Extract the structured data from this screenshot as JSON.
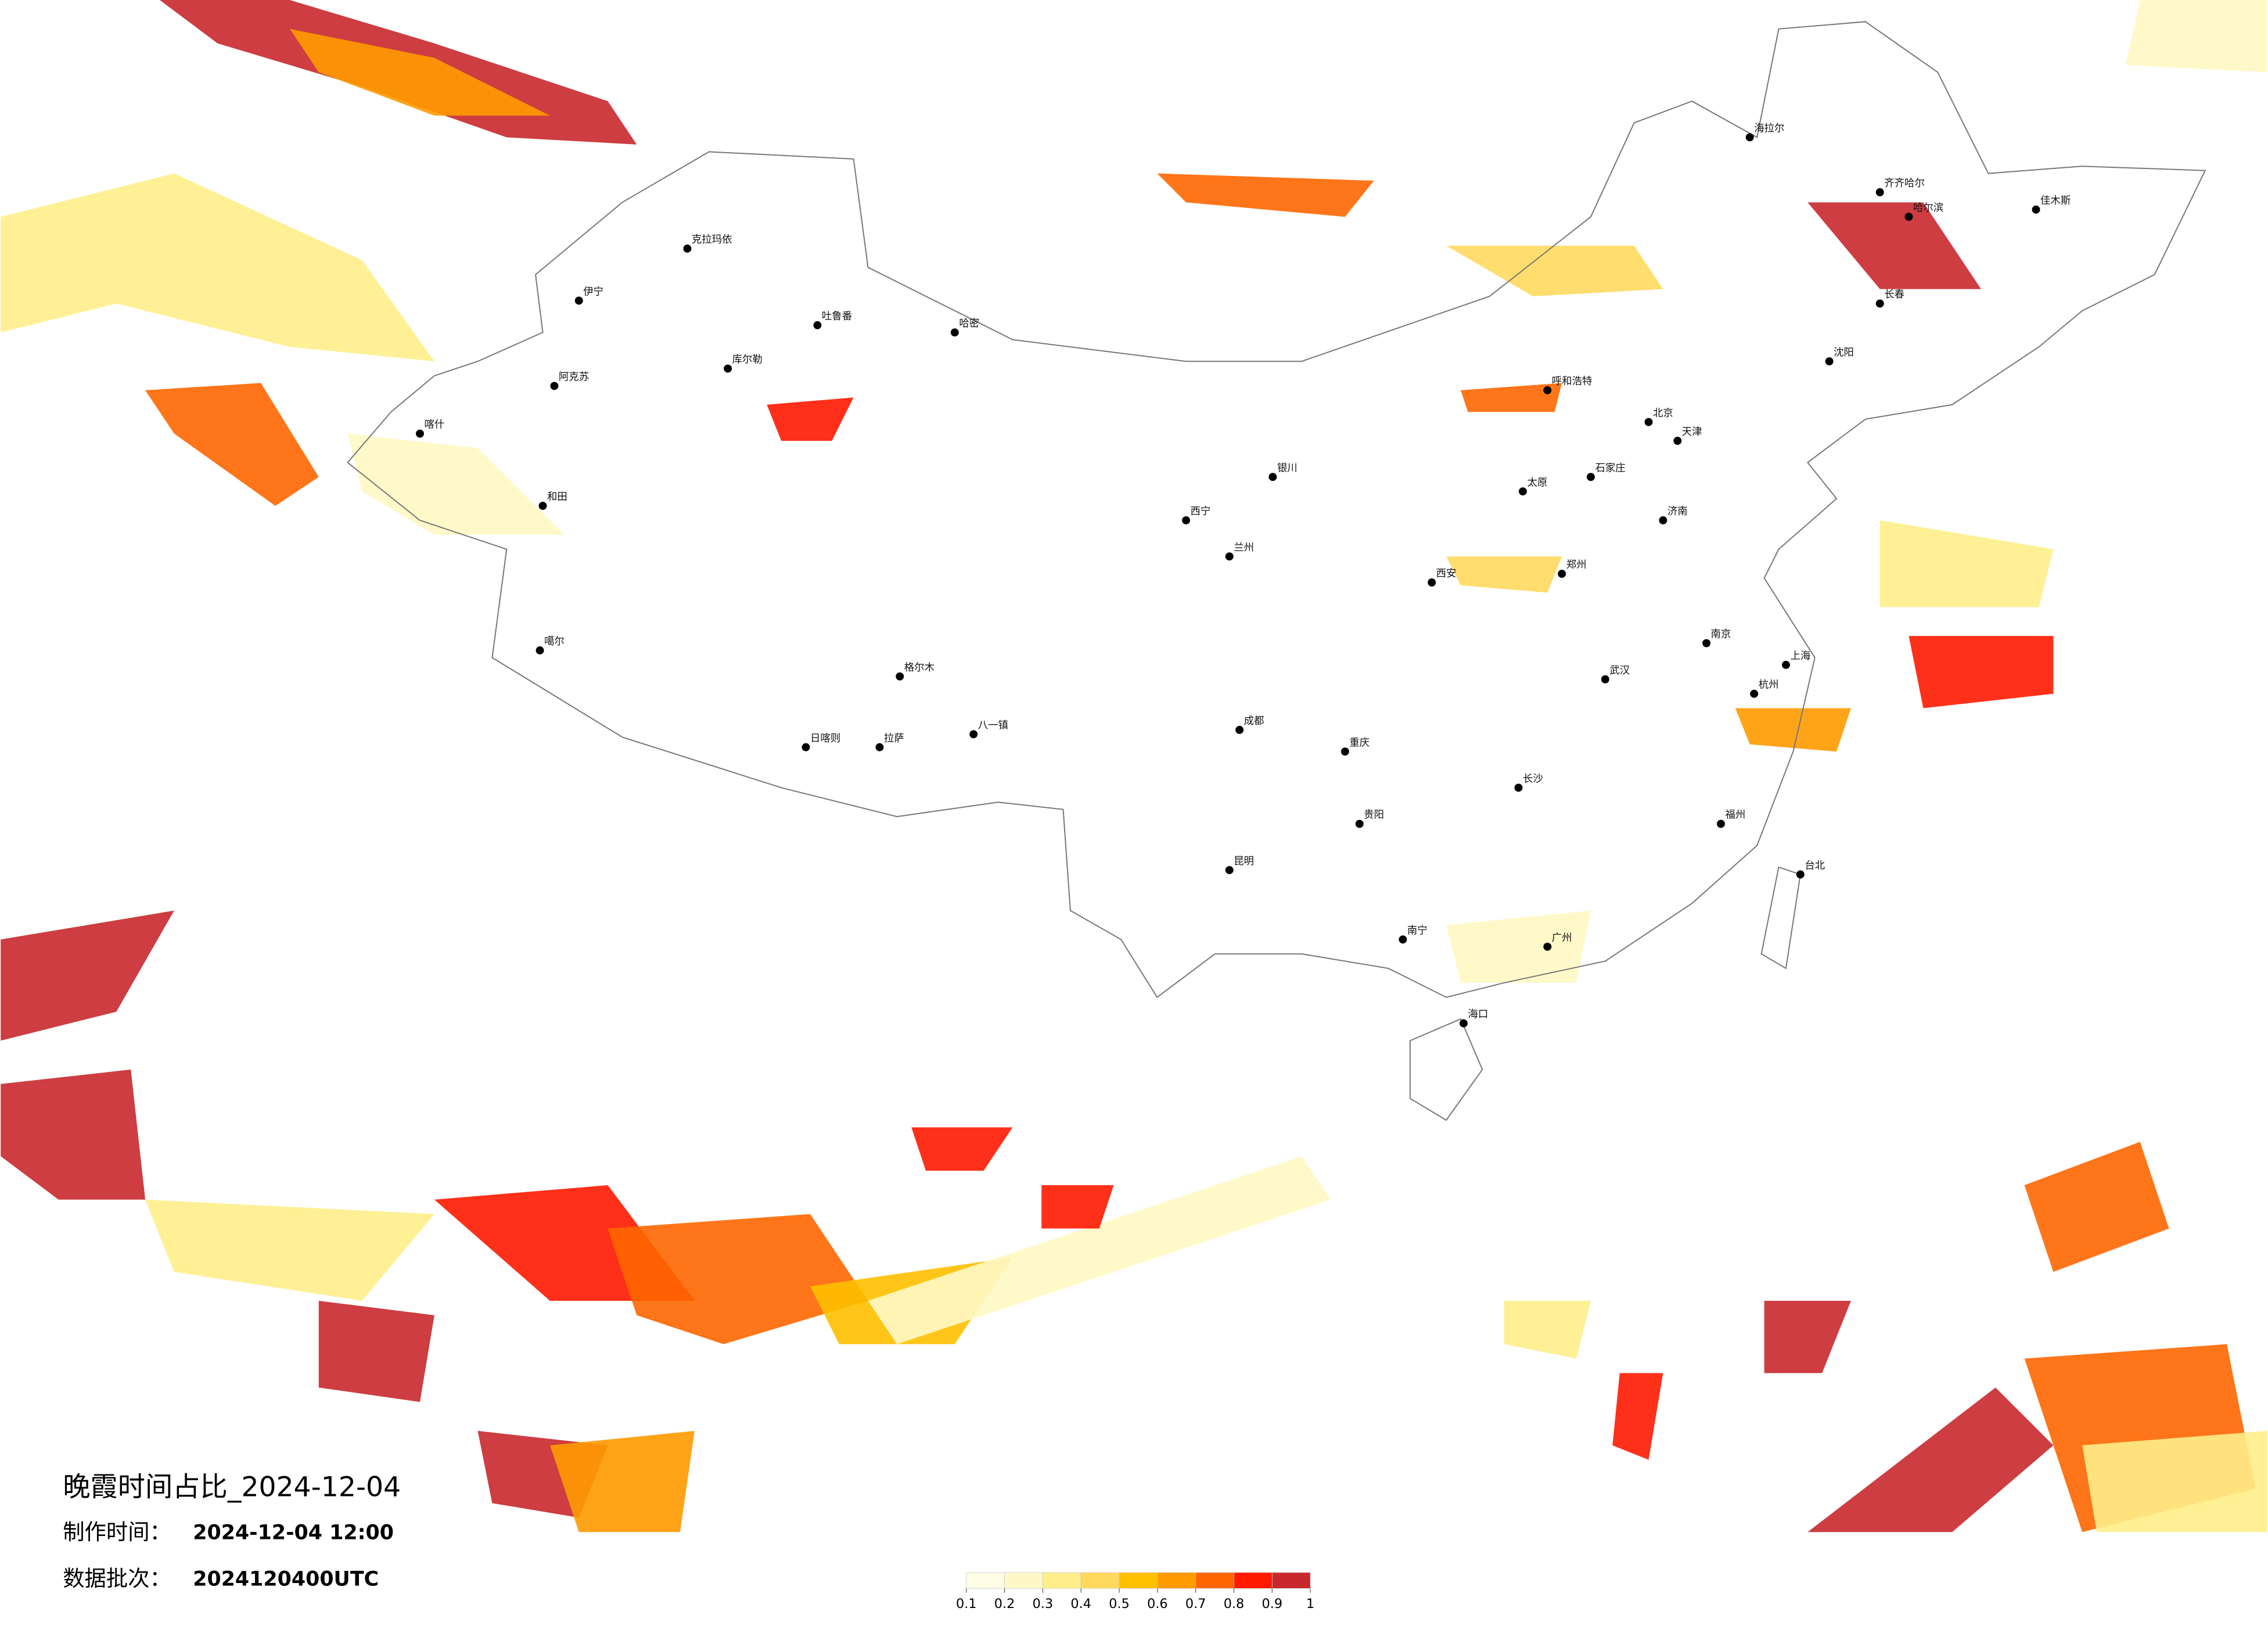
{
  "title": "晚霞时间占比_2024-12-04",
  "make_time_label": "制作时间：",
  "make_time": "2024-12-04 12:00",
  "batch_label": "数据批次：",
  "batch": "2024120400UTC",
  "colorbar": {
    "bounds": [
      0.1,
      0.2,
      0.3,
      0.4,
      0.5,
      0.6,
      0.7,
      0.8,
      0.9,
      1
    ],
    "colors": [
      "#fffde6",
      "#fff8c4",
      "#ffee8a",
      "#ffd95e",
      "#ffc000",
      "#ff9a00",
      "#ff6600",
      "#ff1a00",
      "#c8282d"
    ]
  },
  "cities": [
    "克拉玛依",
    "伊宁",
    "阿克苏",
    "喀什",
    "和田",
    "哈密",
    "库尔勒",
    "吐鲁番",
    "噶尔",
    "日喀则",
    "拉萨",
    "八一镇",
    "格尔木",
    "西宁",
    "兰州",
    "银川",
    "呼和浩特",
    "北京",
    "天津",
    "石家庄",
    "太原",
    "济南",
    "郑州",
    "西安",
    "成都",
    "重庆",
    "贵阳",
    "昆明",
    "南宁",
    "广州",
    "海口",
    "长沙",
    "武汉",
    "南京",
    "上海",
    "杭州",
    "福州",
    "台北",
    "沈阳",
    "长春",
    "哈尔滨",
    "海拉尔",
    "佳木斯",
    "齐齐哈尔"
  ]
}
